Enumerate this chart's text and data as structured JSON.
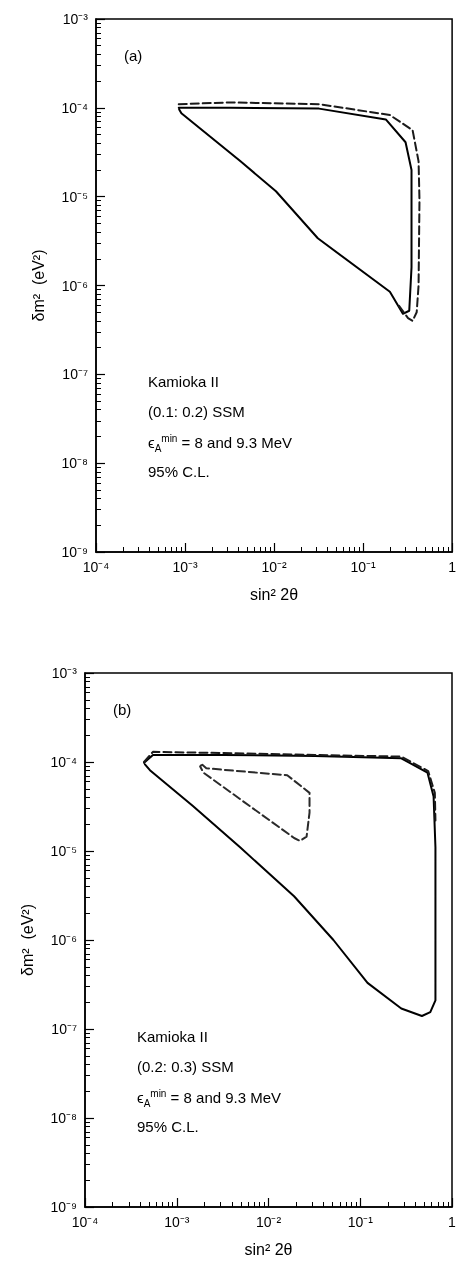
{
  "chart_data": [
    {
      "type": "line",
      "xlabel": "sin² 2θ",
      "ylabel": "δm²  (eV²)",
      "log": "xy",
      "grid": false,
      "marker": "none",
      "xlim": [
        0.0001,
        1
      ],
      "ylim": [
        1e-09,
        0.001
      ],
      "xticks": [
        {
          "value": 0.0001,
          "label": "10⁻⁴"
        },
        {
          "value": 0.001,
          "label": "10⁻³"
        },
        {
          "value": 0.01,
          "label": "10⁻²"
        },
        {
          "value": 0.1,
          "label": "10⁻¹"
        },
        1
      ],
      "yticks": [
        {
          "value": 1e-09,
          "label": "10⁻⁹"
        },
        {
          "value": 1e-08,
          "label": "10⁻⁸"
        },
        {
          "value": 1e-07,
          "label": "10⁻⁷"
        },
        {
          "value": 1e-06,
          "label": "10⁻⁶"
        },
        {
          "value": 1e-05,
          "label": "10⁻⁵"
        },
        {
          "value": 0.0001,
          "label": "10⁻⁴"
        },
        {
          "value": 0.001,
          "label": "10⁻³"
        }
      ],
      "annotations": [
        "(a)",
        "Kamioka II",
        "(0.1: 0.2) SSM",
        "ϵ$_{A}$$^{min}$ = 8 and 9.3 MeV",
        "95% C.L."
      ],
      "series": [
        {
          "color": "#000000",
          "line_style": "solid",
          "x": [
            0.00085,
            0.0032,
            0.032,
            0.18,
            0.3,
            0.35,
            0.35,
            0.35,
            0.33,
            0.28,
            0.2,
            0.031,
            0.0105,
            0.0042,
            0.00091,
            0.00086
          ],
          "values": [
            0.0001,
            0.0001,
            9.8e-05,
            7.4e-05,
            4.1e-05,
            2e-05,
            9.1e-06,
            1.6e-06,
            5.2e-07,
            4.8e-07,
            8.5e-07,
            3.4e-06,
            1.15e-05,
            2.5e-05,
            8.7e-05,
            9.6e-05
          ]
        },
        {
          "color": "#1a1a1a",
          "line_style": "dashed",
          "x": [
            0.00085,
            0.0032,
            0.032,
            0.2,
            0.36,
            0.42,
            0.43,
            0.42,
            0.4,
            0.36,
            0.32,
            0.25
          ],
          "values": [
            0.00011,
            0.000115,
            0.00011,
            8.3e-05,
            5.6e-05,
            2.5e-05,
            9.1e-06,
            1e-06,
            5e-07,
            4e-07,
            4.3e-07,
            6e-07
          ]
        }
      ]
    },
    {
      "type": "line",
      "xlabel": "sin² 2θ",
      "ylabel": "δm²  (eV²)",
      "log": "xy",
      "grid": false,
      "marker": "none",
      "xlim": [
        0.0001,
        1
      ],
      "ylim": [
        1e-09,
        0.001
      ],
      "xticks": [
        {
          "value": 0.0001,
          "label": "10⁻⁴"
        },
        {
          "value": 0.001,
          "label": "10⁻³"
        },
        {
          "value": 0.01,
          "label": "10⁻²"
        },
        {
          "value": 0.1,
          "label": "10⁻¹"
        },
        1
      ],
      "yticks": [
        {
          "value": 1e-09,
          "label": "10⁻⁹"
        },
        {
          "value": 1e-08,
          "label": "10⁻⁸"
        },
        {
          "value": 1e-07,
          "label": "10⁻⁷"
        },
        {
          "value": 1e-06,
          "label": "10⁻⁶"
        },
        {
          "value": 1e-05,
          "label": "10⁻⁵"
        },
        {
          "value": 0.0001,
          "label": "10⁻⁴"
        },
        {
          "value": 0.001,
          "label": "10⁻³"
        }
      ],
      "annotations": [
        "(b)",
        "Kamioka II",
        "(0.2: 0.3) SSM",
        "ϵ$_{A}$$^{min}$ = 8 and 9.3 MeV",
        "95% C.L."
      ],
      "series": [
        {
          "color": "#000000",
          "line_style": "solid",
          "x": [
            0.00044,
            0.00055,
            0.0032,
            0.032,
            0.28,
            0.54,
            0.63,
            0.66,
            0.66,
            0.66,
            0.58,
            0.47,
            0.28,
            0.12,
            0.051,
            0.019,
            0.0049,
            0.0015,
            0.00051,
            0.00045
          ],
          "values": [
            9.8e-05,
            0.00012,
            0.00012,
            0.000117,
            0.00011,
            7.6e-05,
            4.1e-05,
            1.1e-05,
            1e-06,
            2.1e-07,
            1.55e-07,
            1.4e-07,
            1.7e-07,
            3.3e-07,
            1e-06,
            3.1e-06,
            1.1e-05,
            3.2e-05,
            8.1e-05,
            9.4e-05
          ]
        },
        {
          "color": "#1a1a1a",
          "line_style": "dashed",
          "x": [
            0.00044,
            0.00055,
            0.0032,
            0.032,
            0.28,
            0.55,
            0.65,
            0.66
          ],
          "values": [
            0.0001,
            0.00013,
            0.000126,
            0.00012,
            0.000115,
            7.9e-05,
            4.5e-05,
            2.2e-05
          ]
        },
        {
          "color": "#2a2a2a",
          "line_style": "dashed",
          "x": [
            0.0019,
            0.0021,
            0.016,
            0.028,
            0.028,
            0.026,
            0.022,
            0.019,
            0.00195,
            0.0018,
            0.00185
          ],
          "values": [
            9.3e-05,
            8.5e-05,
            7.1e-05,
            4.5e-05,
            2.7e-05,
            1.45e-05,
            1.3e-05,
            1.4e-05,
            7.6e-05,
            8.9e-05,
            9.2e-05
          ]
        }
      ]
    }
  ]
}
